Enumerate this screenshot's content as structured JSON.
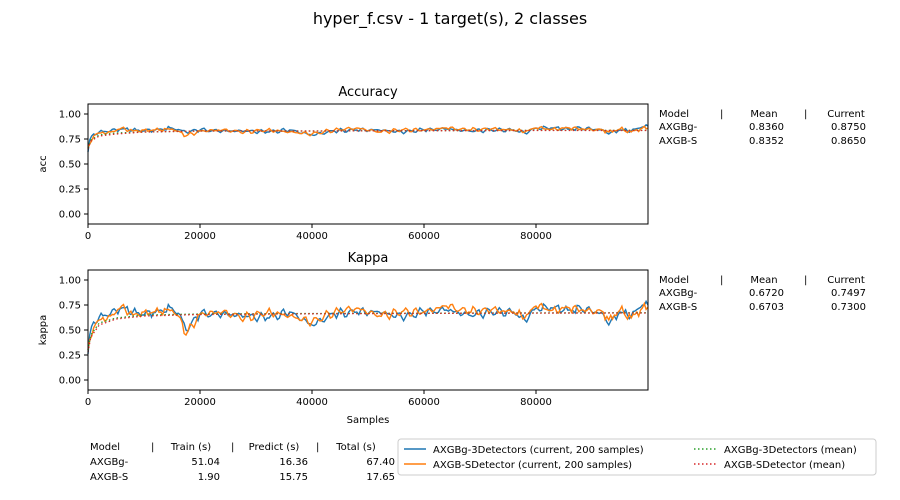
{
  "title": "hyper_f.csv - 1 target(s), 2 classes",
  "colors": {
    "series_a": "#1f77b4",
    "series_b": "#ff7f0e",
    "mean_a": "#2ca02c",
    "mean_b": "#d62728"
  },
  "chart_data": [
    {
      "type": "line",
      "title": "Accuracy",
      "ylabel": "acc",
      "xlabel": "",
      "xlim": [
        0,
        100000
      ],
      "ylim": [
        -0.1,
        1.1
      ],
      "xticks": [
        "0",
        "20000",
        "40000",
        "60000",
        "80000"
      ],
      "yticks": [
        "0.00",
        "0.25",
        "0.50",
        "0.75",
        "1.00"
      ],
      "series": [
        {
          "name": "AXGBg-3Detectors (current, 200 samples)",
          "x": [
            0,
            300,
            1000,
            2000,
            4000,
            6000,
            8000,
            10000,
            13000,
            15000,
            16500,
            17500,
            20000,
            24000,
            28000,
            32000,
            36000,
            40000,
            44000,
            48000,
            52000,
            56000,
            60000,
            64000,
            68000,
            72000,
            76000,
            78000,
            80000,
            83000,
            86000,
            88000,
            92000,
            93000,
            95000,
            97000,
            99000,
            100000
          ],
          "y": [
            0.62,
            0.74,
            0.8,
            0.82,
            0.83,
            0.85,
            0.84,
            0.83,
            0.85,
            0.86,
            0.84,
            0.82,
            0.84,
            0.83,
            0.83,
            0.82,
            0.84,
            0.79,
            0.83,
            0.84,
            0.84,
            0.82,
            0.84,
            0.85,
            0.83,
            0.84,
            0.84,
            0.81,
            0.86,
            0.86,
            0.85,
            0.86,
            0.84,
            0.8,
            0.84,
            0.83,
            0.87,
            0.88
          ]
        },
        {
          "name": "AXGB-SDetector (current, 200 samples)",
          "x": [
            0,
            300,
            1000,
            2000,
            4000,
            6000,
            8000,
            10000,
            13000,
            15000,
            16500,
            17500,
            20000,
            24000,
            28000,
            32000,
            36000,
            40000,
            44000,
            48000,
            52000,
            56000,
            60000,
            64000,
            68000,
            72000,
            76000,
            78000,
            80000,
            83000,
            86000,
            88000,
            92000,
            93000,
            95000,
            97000,
            99000,
            100000
          ],
          "y": [
            0.66,
            0.7,
            0.78,
            0.81,
            0.82,
            0.86,
            0.83,
            0.84,
            0.84,
            0.85,
            0.82,
            0.78,
            0.83,
            0.84,
            0.82,
            0.84,
            0.82,
            0.8,
            0.84,
            0.86,
            0.82,
            0.84,
            0.84,
            0.86,
            0.84,
            0.85,
            0.84,
            0.82,
            0.86,
            0.85,
            0.86,
            0.85,
            0.84,
            0.82,
            0.85,
            0.82,
            0.86,
            0.86
          ]
        },
        {
          "name": "AXGBg-3Detectors (mean)",
          "x": [
            0,
            500,
            2000,
            5000,
            10000,
            20000,
            40000,
            60000,
            80000,
            100000
          ],
          "y": [
            0.66,
            0.74,
            0.79,
            0.81,
            0.82,
            0.83,
            0.83,
            0.834,
            0.836,
            0.836
          ]
        },
        {
          "name": "AXGB-SDetector (mean)",
          "x": [
            0,
            500,
            2000,
            5000,
            10000,
            20000,
            40000,
            60000,
            80000,
            100000
          ],
          "y": [
            0.65,
            0.73,
            0.78,
            0.8,
            0.82,
            0.83,
            0.83,
            0.833,
            0.835,
            0.835
          ]
        }
      ],
      "stats": {
        "header": [
          "Model",
          "Mean",
          "Current"
        ],
        "rows": [
          {
            "model": "AXGBg-",
            "mean": "0.8360",
            "current": "0.8750"
          },
          {
            "model": "AXGB-S",
            "mean": "0.8352",
            "current": "0.8650"
          }
        ]
      }
    },
    {
      "type": "line",
      "title": "Kappa",
      "ylabel": "kappa",
      "xlabel": "Samples",
      "xlim": [
        0,
        100000
      ],
      "ylim": [
        -0.1,
        1.1
      ],
      "xticks": [
        "0",
        "20000",
        "40000",
        "60000",
        "80000"
      ],
      "yticks": [
        "0.00",
        "0.25",
        "0.50",
        "0.75",
        "1.00"
      ],
      "series": [
        {
          "name": "AXGBg-3Detectors (current, 200 samples)",
          "x": [
            0,
            300,
            1000,
            2000,
            4000,
            6000,
            8000,
            10000,
            13000,
            15000,
            16500,
            17500,
            20000,
            24000,
            28000,
            32000,
            36000,
            40000,
            44000,
            48000,
            52000,
            56000,
            60000,
            64000,
            68000,
            72000,
            76000,
            78000,
            80000,
            83000,
            86000,
            88000,
            92000,
            93000,
            95000,
            97000,
            99000,
            100000
          ],
          "y": [
            0.26,
            0.45,
            0.58,
            0.63,
            0.66,
            0.72,
            0.68,
            0.65,
            0.7,
            0.72,
            0.65,
            0.5,
            0.66,
            0.66,
            0.64,
            0.62,
            0.68,
            0.55,
            0.66,
            0.68,
            0.68,
            0.63,
            0.68,
            0.7,
            0.65,
            0.68,
            0.68,
            0.6,
            0.72,
            0.72,
            0.7,
            0.72,
            0.66,
            0.55,
            0.68,
            0.64,
            0.75,
            0.75
          ]
        },
        {
          "name": "AXGB-SDetector (current, 200 samples)",
          "x": [
            0,
            300,
            1000,
            2000,
            4000,
            6000,
            8000,
            10000,
            13000,
            15000,
            16500,
            17500,
            20000,
            24000,
            28000,
            32000,
            36000,
            40000,
            44000,
            48000,
            52000,
            56000,
            60000,
            64000,
            68000,
            72000,
            76000,
            78000,
            80000,
            83000,
            86000,
            88000,
            92000,
            93000,
            95000,
            97000,
            99000,
            100000
          ],
          "y": [
            0.3,
            0.4,
            0.52,
            0.6,
            0.64,
            0.74,
            0.65,
            0.68,
            0.68,
            0.7,
            0.62,
            0.45,
            0.66,
            0.68,
            0.62,
            0.68,
            0.64,
            0.58,
            0.68,
            0.72,
            0.64,
            0.68,
            0.68,
            0.74,
            0.68,
            0.7,
            0.68,
            0.62,
            0.74,
            0.7,
            0.72,
            0.7,
            0.68,
            0.6,
            0.7,
            0.62,
            0.72,
            0.73
          ]
        },
        {
          "name": "AXGBg-3Detectors (mean)",
          "x": [
            0,
            500,
            2000,
            5000,
            10000,
            20000,
            40000,
            60000,
            80000,
            100000
          ],
          "y": [
            0.3,
            0.45,
            0.57,
            0.62,
            0.65,
            0.66,
            0.665,
            0.668,
            0.671,
            0.672
          ]
        },
        {
          "name": "AXGB-SDetector (mean)",
          "x": [
            0,
            500,
            2000,
            5000,
            10000,
            20000,
            40000,
            60000,
            80000,
            100000
          ],
          "y": [
            0.28,
            0.43,
            0.55,
            0.61,
            0.64,
            0.655,
            0.662,
            0.666,
            0.669,
            0.67
          ]
        }
      ],
      "stats": {
        "header": [
          "Model",
          "Mean",
          "Current"
        ],
        "rows": [
          {
            "model": "AXGBg-",
            "mean": "0.6720",
            "current": "0.7497"
          },
          {
            "model": "AXGB-S",
            "mean": "0.6703",
            "current": "0.7300"
          }
        ]
      }
    }
  ],
  "time_table": {
    "header": [
      "Model",
      "Train (s)",
      "Predict (s)",
      "Total (s)"
    ],
    "rows": [
      {
        "model": "AXGBg-",
        "train": "51.04",
        "predict": "16.36",
        "total": "67.40"
      },
      {
        "model": "AXGB-S",
        "train": "1.90",
        "predict": "15.75",
        "total": "17.65"
      }
    ]
  },
  "legend": {
    "placement": "bottom-right",
    "entries": [
      {
        "label": "AXGBg-3Detectors  (current, 200 samples)",
        "style": "solid",
        "color": "#1f77b4"
      },
      {
        "label": "AXGB-SDetector  (current, 200 samples)",
        "style": "solid",
        "color": "#ff7f0e"
      },
      {
        "label": "AXGBg-3Detectors (mean)",
        "style": "dotted",
        "color": "#2ca02c"
      },
      {
        "label": "AXGB-SDetector (mean)",
        "style": "dotted",
        "color": "#d62728"
      }
    ]
  }
}
